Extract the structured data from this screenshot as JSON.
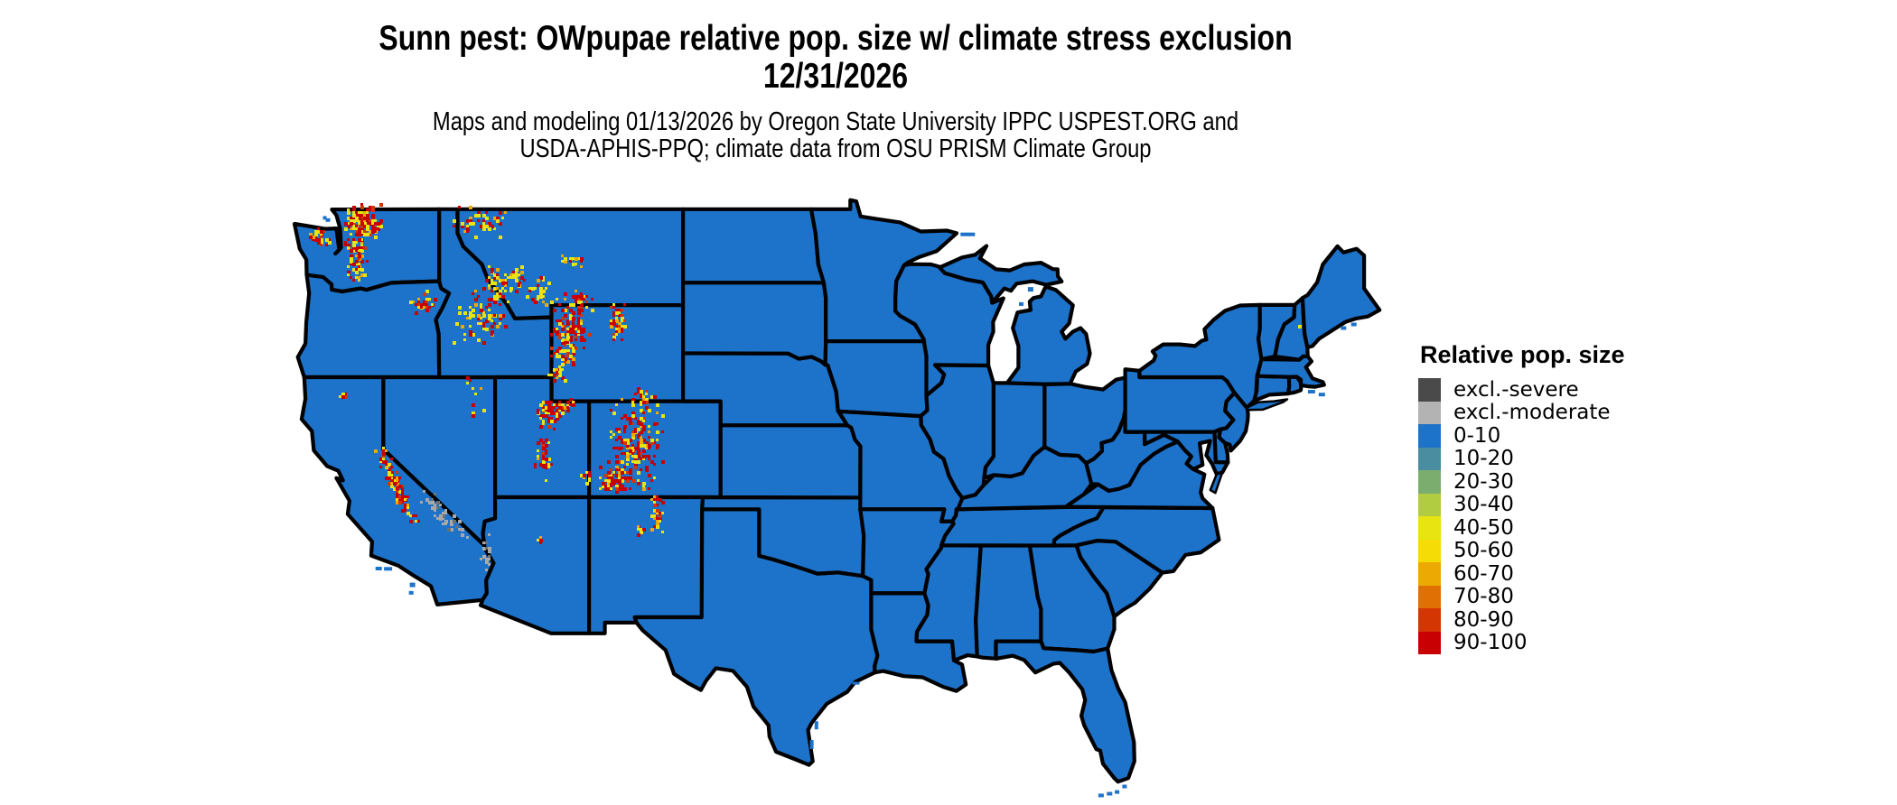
{
  "header": {
    "title_line1": "Sunn pest: OWpupae relative pop. size w/ climate stress exclusion",
    "title_line2": "12/31/2026",
    "subtitle_line1": "Maps and modeling 01/13/2026 by Oregon State University IPPC USPEST.ORG and",
    "subtitle_line2": "USDA-APHIS-PPQ; climate data from OSU PRISM Climate Group"
  },
  "legend": {
    "title": "Relative pop. size",
    "items": [
      {
        "label": "excl.-severe",
        "color": "#4a4a4a"
      },
      {
        "label": "excl.-moderate",
        "color": "#b3b3b3"
      },
      {
        "label": "0-10",
        "color": "#1d72c9"
      },
      {
        "label": "10-20",
        "color": "#4a8da0"
      },
      {
        "label": "20-30",
        "color": "#7bae6e"
      },
      {
        "label": "30-40",
        "color": "#b2cc42"
      },
      {
        "label": "40-50",
        "color": "#e8e412"
      },
      {
        "label": "50-60",
        "color": "#f5dc06"
      },
      {
        "label": "60-70",
        "color": "#eda903"
      },
      {
        "label": "70-80",
        "color": "#e07004"
      },
      {
        "label": "80-90",
        "color": "#d33503"
      },
      {
        "label": "90-100",
        "color": "#c80003"
      }
    ]
  },
  "map": {
    "land_color": "#1d72c9",
    "water_color": "#ffffff",
    "border_color": "#000000",
    "excl_severe_color": "#707070",
    "excl_moderate_color": "#a8a8a8",
    "hotspot_high_color": "#c80003",
    "hotspot_mid_color": "#d33503",
    "hotspot_low_color": "#e8e412"
  }
}
